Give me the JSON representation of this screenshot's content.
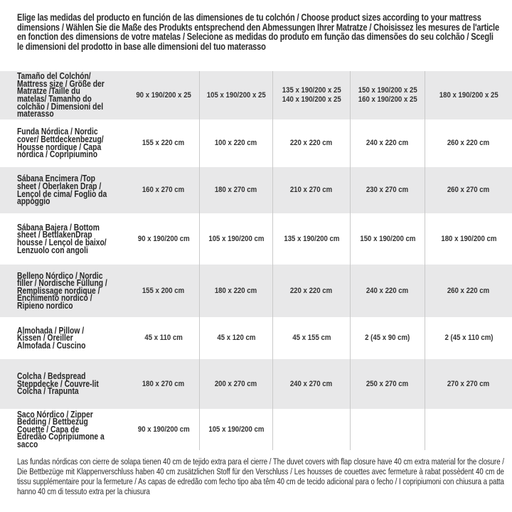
{
  "intro": "Elige las medidas del producto en función de las dimensiones de tu colchón / Choose product sizes according to your mattress dimensions / Wählen Sie die Maße des Produkts entsprechend den Abmessungen Ihrer Matratze / Choisissez les mesures de l'article en fonction des dimensions de votre matelas / Selecione as medidas do produto em função das dimensões do seu colchão / Scegli le dimensioni del prodotto in base alle dimensioni del tuo materasso",
  "table": {
    "header": {
      "label": "Tamaño del Colchón/ Mattress size / Größe der Matratze /Taille du matelas/ Tamanho do colchão / Dimensioni del materasso",
      "columns": [
        "90 x 190/200 x 25",
        "105 x 190/200 x 25",
        "135 x 190/200 x 25\n140 x 190/200 x 25",
        "150 x 190/200 x 25\n160 x 190/200 x 25",
        "180 x 190/200 x 25"
      ]
    },
    "rows": [
      {
        "label": "Funda Nórdica / Nordic cover/ Bettdeckenbezug/ Housse nordique / Capa nórdica / Copripiumino",
        "values": [
          "155 x 220 cm",
          "100 x 220 cm",
          "220 x 220 cm",
          "240 x 220 cm",
          "260 x 220 cm"
        ]
      },
      {
        "label": "Sábana Encimera /Top sheet / Oberlaken Drap / Lençol de cima/ Foglio da appoggio",
        "values": [
          "160 x 270 cm",
          "180 x 270 cm",
          "210 x 270 cm",
          "230 x 270 cm",
          "260 x 270 cm"
        ]
      },
      {
        "label": "Sábana Bajera / Bottom sheet / BettlakenDrap housse / Lençol de baixo/ Lenzuolo con angoli",
        "values": [
          "90 x 190/200 cm",
          "105 x 190/200 cm",
          "135 x 190/200 cm",
          "150 x 190/200 cm",
          "180 x 190/200 cm"
        ]
      },
      {
        "label": "Belleno Nórdico / Nordic filler / Nordische Füllung / Remplissage nordique / Enchimento nordico / Ripieno nordico",
        "values": [
          "155 x 200 cm",
          "180 x 220 cm",
          "220 x 220 cm",
          "240 x 220 cm",
          "260 x 220 cm"
        ]
      },
      {
        "label": "Almohada / Pillow / Kissen / Oreiller Almofada / Cuscino",
        "values": [
          "45 x 110 cm",
          "45 x 120 cm",
          "45 x 155 cm",
          "2 (45 x 90 cm)",
          "2 (45 x 110 cm)"
        ]
      },
      {
        "label": "Colcha / Bedspread Steppdecke / Couvre-lit Colcha / Trapunta",
        "values": [
          "180 x 270 cm",
          "200 x 270 cm",
          "240 x 270 cm",
          "250 x 270 cm",
          "270 x 270 cm"
        ]
      },
      {
        "label": "Saco Nórdico / Zipper Bedding / Bettbezug Couette / Capa de Edredão Copripiumone a sacco",
        "values": [
          "90 x 190/200 cm",
          "105 x 190/200 cm",
          "",
          "",
          ""
        ]
      }
    ]
  },
  "footnote": "Las fundas nórdicas con cierre de solapa tienen 40 cm de tejido extra para el cierre / The duvet covers with flap closure have 40 cm extra material for the closure / Die Bettbezüge mit Klappenverschluss haben 40 cm zusätzlichen Stoff für den Verschluss / Les housses de couettes avec fermeture à rabat possèdent 40 cm de tissu supplémentaire pour la fermeture / As capas de edredão com fecho tipo aba têm 40 cm de tecido adicional para o fecho / I copripiumoni con chiusura a patta hanno 40 cm di tessuto extra per la chiusura"
}
